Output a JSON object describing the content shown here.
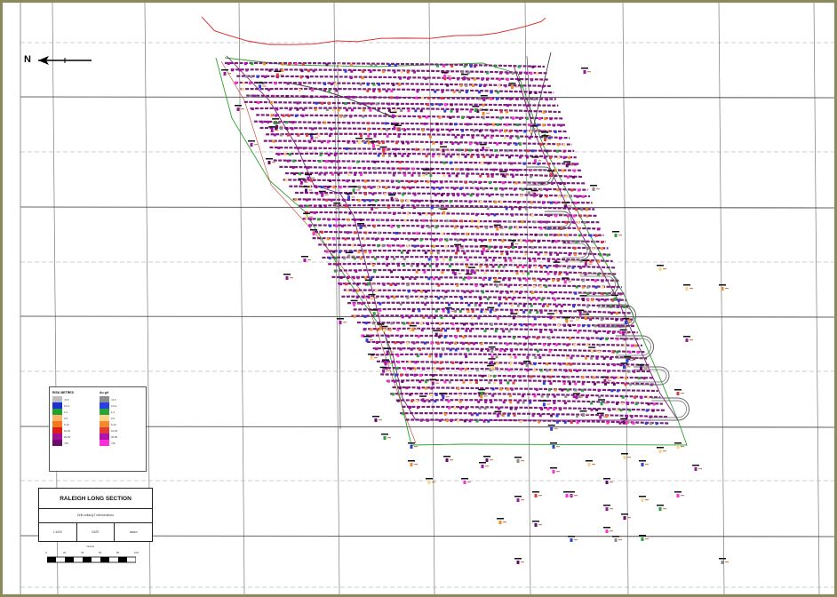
{
  "north_arrow": {
    "label": "N",
    "icon": "north-arrow-icon"
  },
  "section_title": "RALEIGH LONG SECTION",
  "section_subtitle": "Drill collar/gT intersections",
  "title_fields": [
    "1:1000",
    "DATE",
    "drawn"
  ],
  "legend": [
    {
      "title": "RISK METRES",
      "entries": [
        {
          "label": "<0.5",
          "color": "#bdbdbd"
        },
        {
          "label": "0.5-1",
          "color": "#1f2fd6"
        },
        {
          "label": "1-2",
          "color": "#1fa12f"
        },
        {
          "label": "2-5",
          "color": "#ffb266"
        },
        {
          "label": "5-10",
          "color": "#f07a1c"
        },
        {
          "label": "10-20",
          "color": "#e01b1b"
        },
        {
          "label": "20-50",
          "color": "#a0109c"
        },
        {
          "label": ">50",
          "color": "#6a0a6a"
        }
      ]
    },
    {
      "title": "Au g/t",
      "entries": [
        {
          "label": "<0.5",
          "color": "#8c8c8c"
        },
        {
          "label": "0.5-1",
          "color": "#2a3fe0"
        },
        {
          "label": "1-2",
          "color": "#28a43a"
        },
        {
          "label": "2-5",
          "color": "#ffd28a"
        },
        {
          "label": "5-10",
          "color": "#f58a2a"
        },
        {
          "label": "10-20",
          "color": "#e23b3b"
        },
        {
          "label": "20-50",
          "color": "#b012b0"
        },
        {
          "label": ">50",
          "color": "#ff2fd6"
        }
      ]
    }
  ],
  "scale_bar": {
    "unit": "metres",
    "labels": [
      "0",
      "20",
      "40",
      "60",
      "80",
      "100"
    ]
  },
  "colors": {
    "grid": "#7a7a7a",
    "surface": "#d62020",
    "boundary_green": "#2aa12a",
    "boundary_purple": "#7a1f7a",
    "boundary_red": "#c0392b",
    "development": "#666666",
    "frame": "#8a8a5c"
  }
}
